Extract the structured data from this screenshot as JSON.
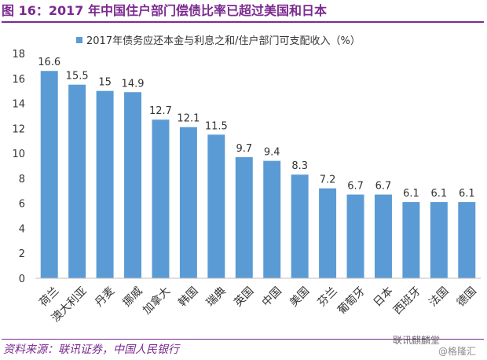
{
  "title": "图 16：2017 年中国住户部门偿债比率已超过美国和日本",
  "source": "资料来源：联讯证券，中国人民银行",
  "watermark": {
    "name": "联讯麒麟堂",
    "handle": "@格隆汇"
  },
  "colors": {
    "accent": "#7b2a8f",
    "bar": "#5b9bd5"
  },
  "chart_data": {
    "type": "bar",
    "legend_position": "top",
    "grid": false,
    "ylim": [
      0,
      18
    ],
    "yticks": [
      0,
      2,
      4,
      6,
      8,
      10,
      12,
      14,
      16,
      18
    ],
    "categories": [
      "荷兰",
      "澳大利亚",
      "丹麦",
      "挪威",
      "加拿大",
      "韩国",
      "瑞典",
      "英国",
      "中国",
      "美国",
      "芬兰",
      "葡萄牙",
      "日本",
      "西班牙",
      "法国",
      "德国"
    ],
    "series": [
      {
        "name": "2017年债务应还本金与利息之和/住户部门可支配收入（%）",
        "values": [
          16.6,
          15.5,
          15,
          14.9,
          12.7,
          12.1,
          11.5,
          9.7,
          9.4,
          8.3,
          7.2,
          6.7,
          6.7,
          6.1,
          6.1,
          6.1
        ],
        "labels": [
          "16.6",
          "15.5",
          "15",
          "14.9",
          "12.7",
          "12.1",
          "11.5",
          "9.7",
          "9.4",
          "8.3",
          "7.2",
          "6.7",
          "6.7",
          "6.1",
          "6.1",
          "6.1"
        ]
      }
    ]
  }
}
